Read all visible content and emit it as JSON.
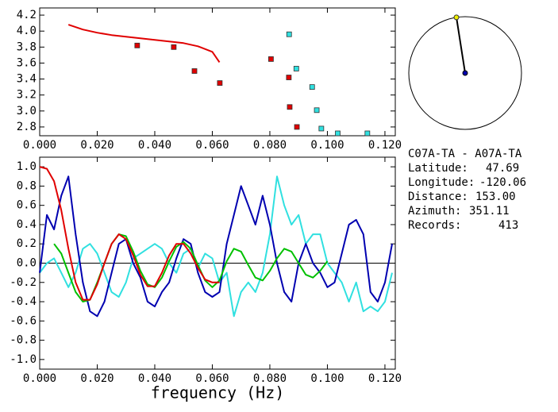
{
  "chart_data": [
    {
      "type": "scatter",
      "xlim": [
        0,
        0.1236
      ],
      "ylim": [
        2.69,
        4.29
      ],
      "xticks": [
        {
          "value": 0,
          "label": "0.000"
        },
        {
          "value": 0.02,
          "label": "0.020"
        },
        {
          "value": 0.04,
          "label": "0.040"
        },
        {
          "value": 0.06,
          "label": "0.060"
        },
        {
          "value": 0.08,
          "label": "0.080"
        },
        {
          "value": 0.1,
          "label": "0.100"
        },
        {
          "value": 0.12,
          "label": "0.120"
        }
      ],
      "yticks": [
        {
          "value": 2.8,
          "label": "2.8"
        },
        {
          "value": 3.0,
          "label": "3.0"
        },
        {
          "value": 3.2,
          "label": "3.2"
        },
        {
          "value": 3.4,
          "label": "3.4"
        },
        {
          "value": 3.6,
          "label": "3.6"
        },
        {
          "value": 3.8,
          "label": "3.8"
        },
        {
          "value": 4.0,
          "label": "4.0"
        },
        {
          "value": 4.2,
          "label": "4.2"
        }
      ],
      "series": [
        {
          "mode": "line",
          "color": "#e00000",
          "x": [
            0.01,
            0.015,
            0.02,
            0.025,
            0.03,
            0.035,
            0.04,
            0.045,
            0.05,
            0.055,
            0.06,
            0.0625
          ],
          "values": [
            4.08,
            4.02,
            3.98,
            3.95,
            3.93,
            3.91,
            3.89,
            3.87,
            3.85,
            3.81,
            3.74,
            3.61
          ]
        },
        {
          "mode": "markers",
          "color": "#e00000",
          "x": [
            0.0339,
            0.0466,
            0.0538,
            0.0626,
            0.0804,
            0.0866,
            0.0869,
            0.0894
          ],
          "values": [
            3.82,
            3.8,
            3.5,
            3.35,
            3.65,
            3.42,
            3.05,
            2.8
          ]
        },
        {
          "mode": "markers",
          "color": "#30e0e0",
          "x": [
            0.0867,
            0.0892,
            0.0947,
            0.0963,
            0.0979,
            0.1036,
            0.1139
          ],
          "values": [
            3.96,
            3.53,
            3.3,
            3.01,
            2.78,
            2.72,
            2.72
          ]
        }
      ]
    },
    {
      "type": "line",
      "x_label": "frequency (Hz)",
      "zero_line": true,
      "xlim": [
        0,
        0.1236
      ],
      "ylim": [
        -1.1,
        1.1
      ],
      "xticks": [
        {
          "value": 0,
          "label": "0.000"
        },
        {
          "value": 0.02,
          "label": "0.020"
        },
        {
          "value": 0.04,
          "label": "0.040"
        },
        {
          "value": 0.06,
          "label": "0.060"
        },
        {
          "value": 0.08,
          "label": "0.080"
        },
        {
          "value": 0.1,
          "label": "0.100"
        },
        {
          "value": 0.12,
          "label": "0.120"
        }
      ],
      "yticks": [
        {
          "value": -1.0,
          "label": "-1.0"
        },
        {
          "value": -0.8,
          "label": "-0.8"
        },
        {
          "value": -0.6,
          "label": "-0.6"
        },
        {
          "value": -0.4,
          "label": "-0.4"
        },
        {
          "value": -0.2,
          "label": "-0.2"
        },
        {
          "value": 0.0,
          "label": "0.0"
        },
        {
          "value": 0.2,
          "label": "0.2"
        },
        {
          "value": 0.4,
          "label": "0.4"
        },
        {
          "value": 0.6,
          "label": "0.6"
        },
        {
          "value": 0.8,
          "label": "0.8"
        },
        {
          "value": 1.0,
          "label": "1.0"
        }
      ],
      "series": [
        {
          "color": "#30e0e0",
          "x": [
            0,
            0.0025,
            0.005,
            0.0075,
            0.01,
            0.0125,
            0.015,
            0.0175,
            0.02,
            0.0225,
            0.025,
            0.0275,
            0.03,
            0.0325,
            0.035,
            0.0375,
            0.04,
            0.0425,
            0.045,
            0.0475,
            0.05,
            0.0525,
            0.055,
            0.0575,
            0.06,
            0.0625,
            0.065,
            0.0675,
            0.07,
            0.0725,
            0.075,
            0.0775,
            0.08,
            0.0825,
            0.085,
            0.0875,
            0.09,
            0.0925,
            0.095,
            0.0975,
            0.1,
            0.1025,
            0.105,
            0.1075,
            0.11,
            0.1125,
            0.115,
            0.1175,
            0.12,
            0.1225
          ],
          "values": [
            -0.1,
            0.0,
            0.05,
            -0.1,
            -0.25,
            -0.1,
            0.15,
            0.2,
            0.1,
            -0.1,
            -0.3,
            -0.35,
            -0.2,
            0.05,
            0.1,
            0.15,
            0.2,
            0.15,
            0.0,
            -0.1,
            0.1,
            0.15,
            -0.05,
            0.1,
            0.05,
            -0.2,
            -0.1,
            -0.55,
            -0.3,
            -0.2,
            -0.3,
            -0.1,
            0.3,
            0.9,
            0.6,
            0.4,
            0.5,
            0.2,
            0.3,
            0.3,
            0.0,
            -0.1,
            -0.2,
            -0.4,
            -0.2,
            -0.5,
            -0.45,
            -0.5,
            -0.4,
            -0.1
          ]
        },
        {
          "color": "#0000b0",
          "x": [
            0,
            0.0025,
            0.005,
            0.0075,
            0.01,
            0.0125,
            0.015,
            0.0175,
            0.02,
            0.0225,
            0.025,
            0.0275,
            0.03,
            0.0325,
            0.035,
            0.0375,
            0.04,
            0.0425,
            0.045,
            0.0475,
            0.05,
            0.0525,
            0.055,
            0.0575,
            0.06,
            0.0625,
            0.065,
            0.0675,
            0.07,
            0.0725,
            0.075,
            0.0775,
            0.08,
            0.0825,
            0.085,
            0.0875,
            0.09,
            0.0925,
            0.095,
            0.0975,
            0.1,
            0.1025,
            0.105,
            0.1075,
            0.11,
            0.1125,
            0.115,
            0.1175,
            0.12,
            0.1225
          ],
          "values": [
            -0.1,
            0.5,
            0.35,
            0.7,
            0.9,
            0.3,
            -0.2,
            -0.5,
            -0.55,
            -0.4,
            -0.1,
            0.2,
            0.25,
            0.0,
            -0.15,
            -0.4,
            -0.45,
            -0.3,
            -0.2,
            0.05,
            0.25,
            0.2,
            -0.1,
            -0.3,
            -0.35,
            -0.3,
            0.2,
            0.5,
            0.8,
            0.6,
            0.4,
            0.7,
            0.4,
            0.0,
            -0.3,
            -0.4,
            0.0,
            0.2,
            0.0,
            -0.1,
            -0.25,
            -0.2,
            0.1,
            0.4,
            0.45,
            0.3,
            -0.3,
            -0.4,
            -0.2,
            0.2
          ]
        },
        {
          "color": "#00c000",
          "x": [
            0.005,
            0.0075,
            0.01,
            0.0125,
            0.015,
            0.0175,
            0.02,
            0.0225,
            0.025,
            0.0275,
            0.03,
            0.0325,
            0.035,
            0.0375,
            0.04,
            0.0425,
            0.045,
            0.0475,
            0.05,
            0.0525,
            0.055,
            0.0575,
            0.06,
            0.0625,
            0.065,
            0.0675,
            0.07,
            0.0725,
            0.075,
            0.0775,
            0.08,
            0.0825,
            0.085,
            0.0875,
            0.09,
            0.0925,
            0.095,
            0.0975,
            0.1
          ],
          "values": [
            0.2,
            0.1,
            -0.1,
            -0.3,
            -0.4,
            -0.38,
            -0.2,
            0.0,
            0.2,
            0.3,
            0.28,
            0.12,
            -0.08,
            -0.22,
            -0.25,
            -0.15,
            0.02,
            0.17,
            0.22,
            0.15,
            -0.02,
            -0.18,
            -0.25,
            -0.18,
            0.02,
            0.15,
            0.12,
            -0.02,
            -0.15,
            -0.18,
            -0.08,
            0.05,
            0.15,
            0.12,
            0.0,
            -0.12,
            -0.15,
            -0.08,
            0.02
          ]
        },
        {
          "color": "#e00000",
          "x": [
            0,
            0.0025,
            0.005,
            0.0075,
            0.01,
            0.0125,
            0.015,
            0.0175,
            0.02,
            0.0225,
            0.025,
            0.0275,
            0.03,
            0.0325,
            0.035,
            0.0375,
            0.04,
            0.0425,
            0.045,
            0.0475,
            0.05,
            0.0525,
            0.055,
            0.0575,
            0.06,
            0.0625
          ],
          "values": [
            1.0,
            0.98,
            0.85,
            0.55,
            0.15,
            -0.2,
            -0.38,
            -0.38,
            -0.22,
            0.0,
            0.2,
            0.3,
            0.25,
            0.08,
            -0.12,
            -0.24,
            -0.24,
            -0.1,
            0.08,
            0.2,
            0.2,
            0.1,
            -0.05,
            -0.17,
            -0.2,
            -0.2
          ]
        }
      ]
    }
  ],
  "info": {
    "title": "C07A-TA  -  A07A-TA",
    "fields": [
      {
        "label": "Latitude:",
        "value": "47.69"
      },
      {
        "label": "Longitude:",
        "value": "-120.06"
      },
      {
        "label": "Distance:",
        "value": "153.00"
      },
      {
        "label": "Azimuth:",
        "value": "351.11"
      },
      {
        "label": "Records:",
        "value": "413"
      }
    ]
  }
}
